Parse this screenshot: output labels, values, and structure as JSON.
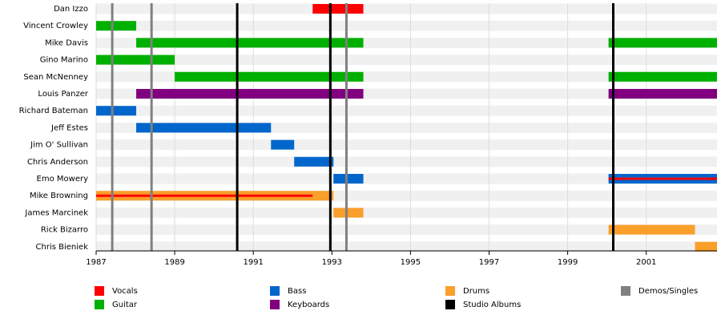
{
  "chart_data": {
    "type": "timeline",
    "categories": [
      "Dan Izzo",
      "Vincent Crowley",
      "Mike Davis",
      "Gino Marino",
      "Sean McNenney",
      "Louis Panzer",
      "Richard Bateman",
      "Jeff Estes",
      "Jim O' Sullivan",
      "Chris Anderson",
      "Emo Mowery",
      "Mike Browning",
      "James Marcinek",
      "Rick Bizarro",
      "Chris Bieniek"
    ],
    "series": [
      {
        "name": "Vocals",
        "color": "#ff0000",
        "values": [
          [
            [
              1992.51,
              1993.8
            ]
          ],
          [],
          [],
          [],
          [],
          [],
          [],
          [],
          [],
          [],
          [],
          [],
          [],
          [],
          []
        ],
        "overlay": [
          [],
          [],
          [],
          [],
          [],
          [],
          [],
          [],
          [],
          [],
          [
            [
              2000.04,
              2002.8
            ]
          ],
          [
            [
              1987,
              1992.51
            ]
          ],
          [],
          [],
          []
        ]
      },
      {
        "name": "Guitar",
        "color": "#00b000",
        "values": [
          [],
          [
            [
              1987,
              1988.02
            ]
          ],
          [
            [
              1988.02,
              1993.8
            ],
            [
              2000.04,
              2002.8
            ]
          ],
          [
            [
              1987,
              1989
            ]
          ],
          [
            [
              1989,
              1993.8
            ],
            [
              2000.04,
              2002.8
            ]
          ],
          [],
          [],
          [],
          [],
          [],
          [],
          [],
          [],
          [],
          []
        ]
      },
      {
        "name": "Bass",
        "color": "#0066cc",
        "values": [
          [],
          [],
          [],
          [],
          [],
          [],
          [
            [
              1987,
              1988.02
            ]
          ],
          [
            [
              1988.02,
              1991.45
            ]
          ],
          [
            [
              1991.45,
              1992.04
            ]
          ],
          [
            [
              1992.04,
              1993.04
            ]
          ],
          [
            [
              1993.04,
              1993.8
            ],
            [
              2000.04,
              2002.8
            ]
          ],
          [],
          [],
          [],
          []
        ]
      },
      {
        "name": "Keyboards",
        "color": "#800080",
        "values": [
          [],
          [],
          [],
          [],
          [],
          [
            [
              1988.02,
              1993.8
            ],
            [
              2000.04,
              2002.8
            ]
          ],
          [],
          [],
          [],
          [],
          [],
          [],
          [],
          [],
          []
        ]
      },
      {
        "name": "Drums",
        "color": "#f99f2a",
        "values": [
          [],
          [],
          [],
          [],
          [],
          [],
          [],
          [],
          [],
          [],
          [],
          [
            [
              1987,
              1993.04
            ]
          ],
          [
            [
              1993.04,
              1993.8
            ]
          ],
          [
            [
              2000.04,
              2002.24
            ]
          ],
          [
            [
              2002.24,
              2002.8
            ]
          ]
        ]
      }
    ],
    "events": [
      {
        "name": "Studio Albums",
        "color": "#000000",
        "values": [
          1990.59,
          1992.96,
          2000.16
        ]
      },
      {
        "name": "Demos/Singles",
        "color": "#808080",
        "values": [
          1987.41,
          1988.41,
          1993.37
        ]
      }
    ],
    "xlim": [
      1987,
      2002.8
    ],
    "xticks": [
      1987,
      1989,
      1991,
      1993,
      1995,
      1997,
      1999,
      2001
    ],
    "grid": true
  }
}
